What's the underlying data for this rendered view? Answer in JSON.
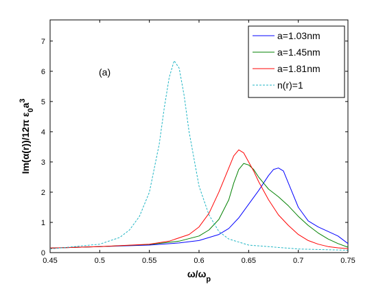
{
  "chart_data": {
    "type": "line",
    "title": "",
    "xlabel": "ω/ω",
    "xlabel_sub": "p",
    "ylabel": "Im(α(r))/12π ε",
    "ylabel_sub": "0",
    "ylabel_tail": "a",
    "ylabel_sup": "3",
    "annotation": "(a)",
    "xlim": [
      0.45,
      0.75
    ],
    "ylim": [
      0,
      7.7
    ],
    "xticks": [
      "0.45",
      "0.5",
      "0.55",
      "0.6",
      "0.65",
      "0.7",
      "0.75"
    ],
    "yticks": [
      "0",
      "1",
      "2",
      "3",
      "4",
      "5",
      "6",
      "7"
    ],
    "grid": false,
    "legend_position": "top-right",
    "series": [
      {
        "name": "a=1.03nm",
        "color": "#0000ff",
        "dash": "solid",
        "x": [
          0.45,
          0.5,
          0.55,
          0.58,
          0.6,
          0.62,
          0.63,
          0.64,
          0.65,
          0.66,
          0.67,
          0.675,
          0.68,
          0.685,
          0.69,
          0.7,
          0.71,
          0.72,
          0.73,
          0.74,
          0.75
        ],
        "y": [
          0.15,
          0.2,
          0.25,
          0.32,
          0.4,
          0.6,
          0.8,
          1.15,
          1.6,
          2.05,
          2.55,
          2.75,
          2.8,
          2.7,
          2.3,
          1.5,
          1.05,
          0.85,
          0.7,
          0.55,
          0.3
        ]
      },
      {
        "name": "a=1.45nm",
        "color": "#008000",
        "dash": "solid",
        "x": [
          0.45,
          0.5,
          0.55,
          0.58,
          0.6,
          0.61,
          0.62,
          0.63,
          0.635,
          0.64,
          0.645,
          0.65,
          0.655,
          0.66,
          0.67,
          0.68,
          0.69,
          0.7,
          0.71,
          0.72,
          0.73,
          0.74,
          0.75
        ],
        "y": [
          0.15,
          0.2,
          0.27,
          0.38,
          0.55,
          0.75,
          1.1,
          1.75,
          2.3,
          2.75,
          2.95,
          2.9,
          2.75,
          2.5,
          2.1,
          1.85,
          1.55,
          1.2,
          0.9,
          0.65,
          0.45,
          0.3,
          0.18
        ]
      },
      {
        "name": "a=1.81nm",
        "color": "#ff0000",
        "dash": "solid",
        "x": [
          0.45,
          0.5,
          0.55,
          0.57,
          0.59,
          0.6,
          0.61,
          0.62,
          0.63,
          0.635,
          0.64,
          0.645,
          0.65,
          0.655,
          0.66,
          0.67,
          0.68,
          0.69,
          0.7,
          0.71,
          0.72,
          0.73,
          0.74,
          0.75
        ],
        "y": [
          0.15,
          0.2,
          0.28,
          0.38,
          0.6,
          0.85,
          1.3,
          2.0,
          2.8,
          3.2,
          3.4,
          3.3,
          3.0,
          2.7,
          2.35,
          1.75,
          1.25,
          0.9,
          0.6,
          0.4,
          0.28,
          0.2,
          0.16,
          0.13
        ]
      },
      {
        "name": "n(r)=1",
        "color": "#1fb5c4",
        "dash": "dashed",
        "x": [
          0.45,
          0.5,
          0.52,
          0.53,
          0.54,
          0.55,
          0.56,
          0.565,
          0.57,
          0.575,
          0.58,
          0.585,
          0.59,
          0.6,
          0.61,
          0.62,
          0.63,
          0.65,
          0.7,
          0.75
        ],
        "y": [
          0.12,
          0.28,
          0.5,
          0.75,
          1.2,
          2.0,
          3.6,
          4.8,
          5.8,
          6.35,
          6.1,
          5.2,
          4.0,
          2.2,
          1.25,
          0.7,
          0.45,
          0.25,
          0.12,
          0.08
        ]
      }
    ]
  }
}
